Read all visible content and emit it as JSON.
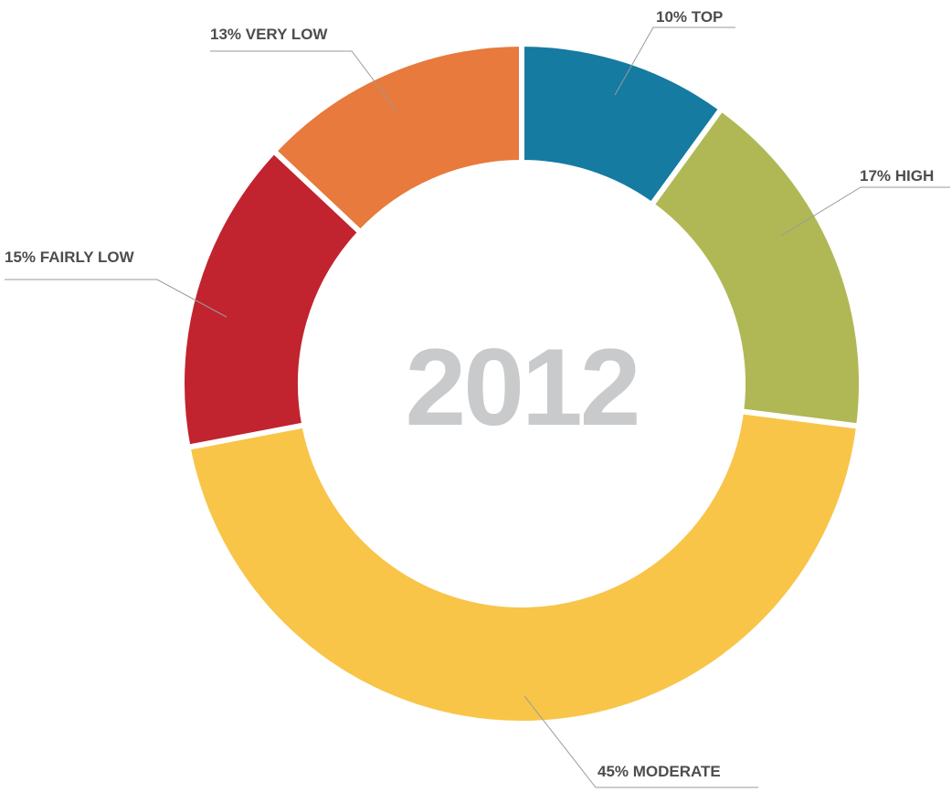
{
  "chart_data": {
    "type": "pie",
    "center_label": "2012",
    "slices": [
      {
        "label": "10% TOP",
        "value": 10,
        "color": "#157ba1"
      },
      {
        "label": "17% HIGH",
        "value": 17,
        "color": "#b0b855"
      },
      {
        "label": "45% MODERATE",
        "value": 45,
        "color": "#f8c549"
      },
      {
        "label": "15% FAIRLY LOW",
        "value": 15,
        "color": "#c1232f"
      },
      {
        "label": "13% VERY LOW",
        "value": 13,
        "color": "#e77a3c"
      }
    ]
  }
}
